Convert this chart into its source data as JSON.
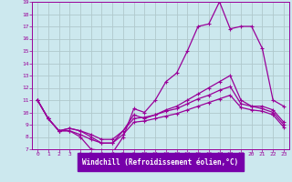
{
  "background_color": "#cce8ee",
  "grid_color": "#b0c8cc",
  "line_color": "#990099",
  "xlabel": "Windchill (Refroidissement éolien,°C)",
  "xlabel_bg": "#7700aa",
  "xlim": [
    -0.5,
    23.5
  ],
  "ylim": [
    7,
    19
  ],
  "yticks": [
    7,
    8,
    9,
    10,
    11,
    12,
    13,
    14,
    15,
    16,
    17,
    18,
    19
  ],
  "xticks": [
    0,
    1,
    2,
    3,
    4,
    5,
    6,
    7,
    8,
    9,
    10,
    11,
    12,
    13,
    14,
    15,
    16,
    17,
    18,
    19,
    20,
    21,
    22,
    23
  ],
  "series": [
    [
      11.0,
      9.5,
      8.5,
      8.5,
      8.0,
      7.0,
      6.9,
      6.7,
      8.0,
      10.3,
      10.0,
      11.0,
      12.5,
      13.2,
      15.0,
      17.0,
      17.2,
      19.0,
      16.8,
      17.0,
      17.0,
      15.2,
      11.0,
      10.5
    ],
    [
      11.0,
      9.5,
      8.5,
      8.7,
      8.5,
      8.0,
      7.5,
      7.5,
      8.5,
      9.8,
      9.5,
      9.8,
      10.2,
      10.5,
      11.0,
      11.5,
      12.0,
      12.5,
      13.0,
      11.0,
      10.5,
      10.5,
      10.2,
      9.2
    ],
    [
      11.0,
      9.5,
      8.5,
      8.7,
      8.5,
      8.2,
      7.8,
      7.8,
      8.5,
      9.5,
      9.6,
      9.8,
      10.1,
      10.3,
      10.7,
      11.1,
      11.4,
      11.8,
      12.1,
      10.7,
      10.5,
      10.3,
      10.0,
      9.0
    ],
    [
      11.0,
      9.5,
      8.5,
      8.5,
      8.2,
      7.8,
      7.5,
      7.5,
      8.2,
      9.2,
      9.3,
      9.5,
      9.7,
      9.9,
      10.2,
      10.5,
      10.8,
      11.1,
      11.4,
      10.4,
      10.2,
      10.1,
      9.8,
      8.8
    ]
  ]
}
